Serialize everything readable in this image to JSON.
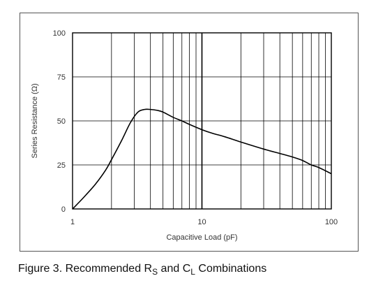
{
  "chart_data": {
    "type": "line",
    "title": "",
    "xlabel": "Capacitive Load (pF)",
    "ylabel": "Series Resistance (Ω)",
    "xscale": "log",
    "xlim": [
      1,
      100
    ],
    "ylim": [
      0,
      100
    ],
    "x_ticks": [
      "1",
      "10",
      "100"
    ],
    "y_ticks": [
      "0",
      "25",
      "50",
      "75",
      "100"
    ],
    "grid": true,
    "series": [
      {
        "x": [
          1,
          1.2,
          1.5,
          1.8,
          2,
          2.4,
          2.8,
          3.2,
          3.6,
          4,
          4.5,
          5,
          6,
          7,
          8,
          10,
          12,
          15,
          20,
          30,
          40,
          50,
          60,
          70,
          80,
          100
        ],
        "y": [
          0,
          6,
          14,
          22,
          28,
          39,
          49,
          55,
          56.5,
          56.5,
          56,
          55,
          52,
          50,
          48,
          45,
          43,
          41,
          38,
          34,
          31.5,
          29.5,
          27.5,
          25,
          23.5,
          20
        ]
      }
    ]
  },
  "caption": {
    "prefix": "Figure 3. Recommended R",
    "sub1": "S",
    "middle": " and C",
    "sub2": "L",
    "suffix": " Combinations"
  },
  "colors": {
    "line": "#000000",
    "grid": "#000000",
    "text": "#333333"
  }
}
